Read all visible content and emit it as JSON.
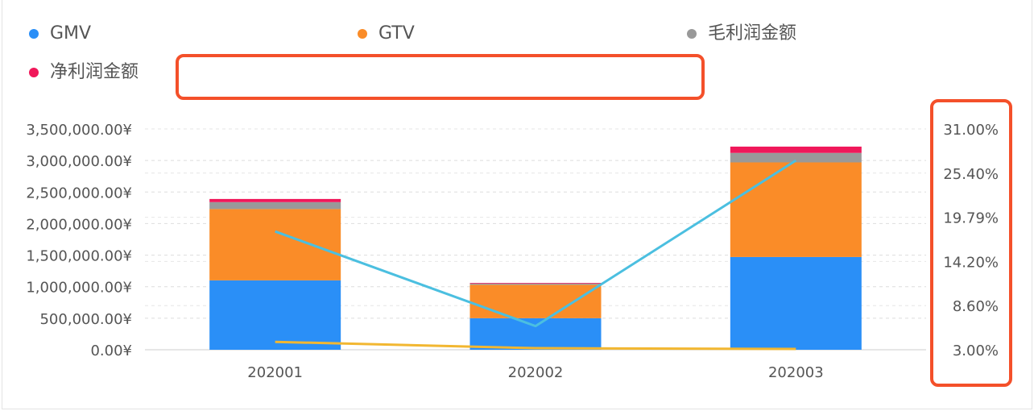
{
  "legend": {
    "items": [
      {
        "label": "GMV",
        "color": "#2a8ff7"
      },
      {
        "label": "GTV",
        "color": "#fa8c28"
      },
      {
        "label": "毛利润金额",
        "color": "#999999"
      },
      {
        "label": "净利润金额",
        "color": "#f0185a"
      }
    ]
  },
  "chart_data": {
    "type": "bar",
    "stacked": true,
    "categories": [
      "202001",
      "202002",
      "202003"
    ],
    "series": [
      {
        "name": "GMV",
        "type": "bar",
        "axis": "left",
        "color": "#2a8ff7",
        "values": [
          1100000,
          500000,
          1470000
        ]
      },
      {
        "name": "GTV",
        "type": "bar",
        "axis": "left",
        "color": "#fa8c28",
        "values": [
          1130000,
          530000,
          1500000
        ]
      },
      {
        "name": "毛利润金额",
        "type": "bar",
        "axis": "left",
        "color": "#999999",
        "values": [
          110000,
          20000,
          150000
        ]
      },
      {
        "name": "净利润金额",
        "type": "bar",
        "axis": "left",
        "color": "#f0185a",
        "values": [
          50000,
          10000,
          100000
        ]
      },
      {
        "type": "line",
        "axis": "right",
        "color": "#4bbfe0",
        "values": [
          0.18,
          0.06,
          0.27
        ]
      },
      {
        "type": "line",
        "axis": "right",
        "color": "#f2b731",
        "values": [
          0.04,
          0.032,
          0.031
        ]
      }
    ],
    "y_left": {
      "min": 0,
      "max": 3500000,
      "ticks": [
        0,
        500000,
        1000000,
        1500000,
        2000000,
        2500000,
        3000000,
        3500000
      ],
      "tick_labels": [
        "0.00¥",
        "500,000.00¥",
        "1,000,000.00¥",
        "1,500,000.00¥",
        "2,000,000.00¥",
        "2,500,000.00¥",
        "3,000,000.00¥",
        "3,500,000.00¥"
      ]
    },
    "y_right": {
      "min": 0.03,
      "max": 0.31,
      "tick_labels": [
        "3.00%",
        "8.60%",
        "14.20%",
        "19.79%",
        "25.40%",
        "31.00%"
      ]
    },
    "grid": true,
    "legend_position": "top"
  },
  "colors": {
    "highlight": "#f4502a",
    "gridline": "#dddddd",
    "axis_text": "#555555"
  }
}
